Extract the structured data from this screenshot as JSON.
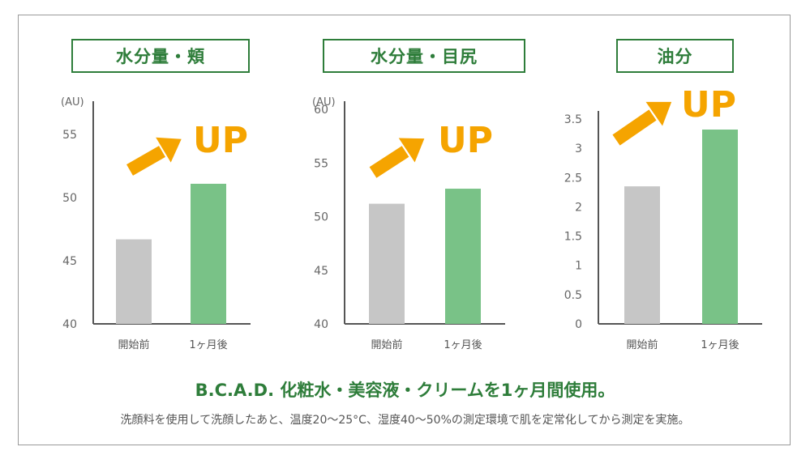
{
  "colors": {
    "accent": "#2e7d3a",
    "before_bar": "#c6c6c6",
    "after_bar": "#79c287",
    "arrow": "#f5a400"
  },
  "chart_data": [
    {
      "type": "bar",
      "title": "水分量・頬",
      "unit_label": "(AU)",
      "categories": [
        "開始前",
        "1ヶ月後"
      ],
      "values": [
        46.7,
        51.1
      ],
      "ylim": [
        40,
        57
      ],
      "yticks": [
        "40",
        "45",
        "50",
        "55"
      ],
      "yticks_values": [
        40,
        45,
        50,
        55
      ],
      "annotation": "UP",
      "grid": false
    },
    {
      "type": "bar",
      "title": "水分量・目尻",
      "unit_label": "(AU)",
      "categories": [
        "開始前",
        "1ヶ月後"
      ],
      "values": [
        51.2,
        52.6
      ],
      "ylim": [
        40,
        60
      ],
      "yticks": [
        "40",
        "45",
        "50",
        "55",
        "60"
      ],
      "yticks_values": [
        40,
        45,
        50,
        55,
        60
      ],
      "annotation": "UP",
      "grid": false
    },
    {
      "type": "bar",
      "title": "油分",
      "unit_label": "",
      "categories": [
        "開始前",
        "1ヶ月後"
      ],
      "values": [
        2.35,
        3.32
      ],
      "ylim": [
        0,
        3.5
      ],
      "yticks": [
        "0",
        "0.5",
        "1",
        "1.5",
        "2",
        "2.5",
        "3",
        "3.5"
      ],
      "yticks_values": [
        0,
        0.5,
        1,
        1.5,
        2,
        2.5,
        3,
        3.5
      ],
      "annotation": "UP",
      "grid": false
    }
  ],
  "caption": "B.C.A.D. 化粧水・美容液・クリームを1ヶ月間使用。",
  "note": "洗顔料を使用して洗顔したあと、温度20〜25°C、湿度40〜50%の測定環境で肌を定常化してから測定を実施。"
}
